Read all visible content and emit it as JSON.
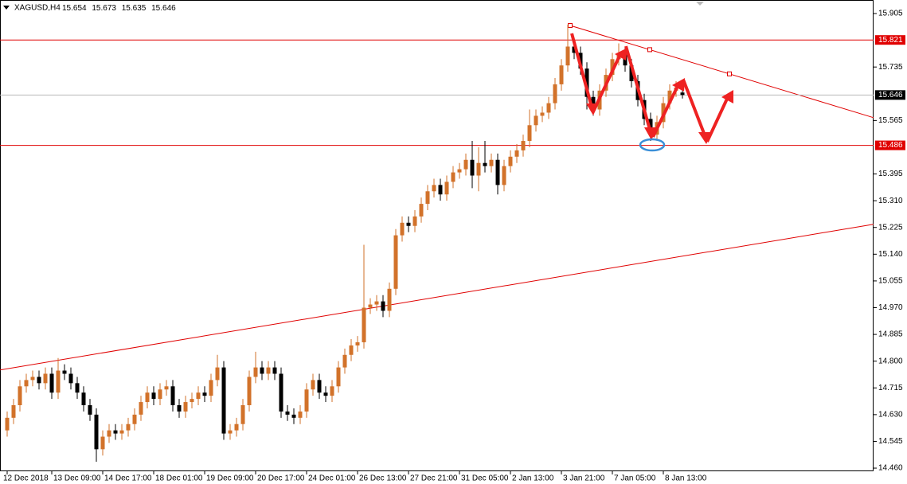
{
  "chart_data": {
    "type": "candlestick",
    "symbol": "XAGUSD,H4",
    "bull_color": "#d2722a",
    "bear_color": "#000000",
    "level_color": "#e00000",
    "ylim": [
      14.45,
      15.948
    ],
    "yticks": [
      15.905,
      15.735,
      15.565,
      15.395,
      {
        "value": 15.31,
        "label": "15.310"
      },
      15.225,
      {
        "value": 15.14,
        "label": "15.140"
      },
      15.055,
      {
        "value": 14.97,
        "label": "14.970"
      },
      14.885,
      {
        "value": 14.8,
        "label": "14.800"
      },
      14.715,
      {
        "value": 14.63,
        "label": "14.630"
      },
      14.545,
      {
        "value": 14.46,
        "label": "14.460"
      }
    ],
    "levels": [
      15.821,
      15.486
    ],
    "trendlines": [
      {
        "from": 14.772,
        "to": 15.235
      },
      {
        "from": 15.867,
        "to": 15.574
      }
    ],
    "categories": [
      "12 Dec 2018",
      null,
      null,
      null,
      null,
      null,
      null,
      "13 Dec 09:00",
      null,
      null,
      null,
      null,
      null,
      null,
      null,
      "14 Dec 17:00",
      null,
      null,
      null,
      null,
      null,
      null,
      null,
      "18 Dec 01:00",
      null,
      null,
      null,
      null,
      null,
      null,
      null,
      "19 Dec 09:00",
      null,
      null,
      null,
      null,
      null,
      null,
      null,
      "20 Dec 17:00",
      null,
      null,
      null,
      null,
      null,
      null,
      null,
      "24 Dec 01:00",
      null,
      null,
      null,
      null,
      null,
      null,
      null,
      "26 Dec 13:00",
      null,
      null,
      null,
      null,
      null,
      null,
      null,
      "27 Dec 21:00",
      null,
      null,
      null,
      null,
      null,
      null,
      null,
      "31 Dec 05:00",
      null,
      null,
      null,
      null,
      null,
      null,
      null,
      "2 Jan 13:00",
      null,
      null,
      null,
      null,
      null,
      null,
      null,
      "3 Jan 21:00",
      null,
      null,
      null,
      null,
      null,
      null,
      null,
      "7 Jan 05:00",
      null,
      null,
      null,
      null,
      null,
      null,
      null,
      "8 Jan 13:00",
      null,
      null,
      null
    ],
    "open": [
      14.58,
      14.62,
      14.66,
      14.72,
      14.74,
      14.75,
      14.73,
      14.76,
      14.7,
      14.77,
      14.76,
      14.73,
      14.7,
      14.66,
      14.63,
      14.52,
      14.56,
      14.58,
      14.57,
      14.58,
      14.6,
      14.63,
      14.67,
      14.7,
      14.68,
      14.71,
      14.72,
      14.66,
      14.64,
      14.67,
      14.68,
      14.7,
      14.69,
      14.74,
      14.78,
      14.57,
      14.58,
      14.6,
      14.66,
      14.75,
      14.78,
      14.76,
      14.78,
      14.76,
      14.64,
      14.63,
      14.62,
      14.64,
      14.71,
      14.74,
      14.7,
      14.69,
      14.72,
      14.78,
      14.82,
      14.85,
      14.86,
      14.97,
      14.98,
      14.99,
      14.96,
      15.03,
      15.2,
      15.24,
      15.23,
      15.26,
      15.3,
      15.34,
      15.36,
      15.33,
      15.37,
      15.4,
      15.41,
      15.44,
      15.39,
      15.43,
      15.42,
      15.44,
      15.36,
      15.42,
      15.45,
      15.47,
      15.5,
      15.55,
      15.58,
      15.59,
      15.62,
      15.68,
      15.74,
      15.8,
      15.78,
      15.73,
      15.64,
      15.6,
      15.66,
      15.71,
      15.76,
      15.78,
      15.74,
      15.69,
      15.63,
      15.57,
      15.52,
      15.56,
      15.62,
      15.66,
      15.654
    ],
    "high": [
      14.64,
      14.68,
      14.74,
      14.76,
      14.77,
      14.77,
      14.78,
      14.78,
      14.81,
      14.79,
      14.78,
      14.75,
      14.72,
      14.68,
      14.65,
      14.58,
      14.6,
      14.6,
      14.6,
      14.62,
      14.65,
      14.69,
      14.72,
      14.72,
      14.73,
      14.74,
      14.74,
      14.68,
      14.69,
      14.7,
      14.72,
      14.72,
      14.76,
      14.82,
      14.8,
      14.6,
      14.62,
      14.68,
      14.77,
      14.83,
      14.8,
      14.8,
      14.8,
      14.78,
      14.66,
      14.65,
      14.66,
      14.73,
      14.76,
      14.76,
      14.72,
      14.74,
      14.8,
      14.84,
      14.87,
      14.88,
      15.17,
      15.0,
      15.01,
      15.01,
      15.05,
      15.22,
      15.26,
      15.26,
      15.28,
      15.32,
      15.36,
      15.38,
      15.38,
      15.39,
      15.42,
      15.43,
      15.46,
      15.5,
      15.48,
      15.5,
      15.46,
      15.46,
      15.44,
      15.47,
      15.49,
      15.52,
      15.6,
      15.6,
      15.61,
      15.64,
      15.7,
      15.76,
      15.87,
      15.82,
      15.8,
      15.75,
      15.66,
      15.68,
      15.73,
      15.78,
      15.81,
      15.8,
      15.76,
      15.71,
      15.65,
      15.59,
      15.58,
      15.64,
      15.68,
      15.69,
      15.673
    ],
    "low": [
      14.56,
      14.6,
      14.64,
      14.7,
      14.72,
      14.71,
      14.71,
      14.68,
      14.68,
      14.74,
      14.71,
      14.68,
      14.64,
      14.61,
      14.48,
      14.5,
      14.54,
      14.55,
      14.55,
      14.56,
      14.58,
      14.61,
      14.65,
      14.66,
      14.66,
      14.69,
      14.64,
      14.62,
      14.62,
      14.65,
      14.66,
      14.67,
      14.67,
      14.72,
      14.55,
      14.55,
      14.56,
      14.58,
      14.64,
      14.73,
      14.74,
      14.74,
      14.74,
      14.62,
      14.61,
      14.6,
      14.6,
      14.62,
      14.69,
      14.68,
      14.67,
      14.67,
      14.7,
      14.76,
      14.8,
      14.83,
      14.84,
      14.95,
      14.96,
      14.94,
      14.94,
      15.01,
      15.18,
      15.21,
      15.21,
      15.24,
      15.28,
      15.32,
      15.31,
      15.31,
      15.35,
      15.38,
      15.39,
      15.35,
      15.34,
      15.4,
      15.4,
      15.33,
      15.34,
      15.4,
      15.43,
      15.45,
      15.48,
      15.53,
      15.56,
      15.57,
      15.6,
      15.66,
      15.72,
      15.76,
      15.71,
      15.6,
      15.58,
      15.58,
      15.64,
      15.69,
      15.74,
      15.72,
      15.67,
      15.61,
      15.55,
      15.5,
      15.5,
      15.54,
      15.6,
      15.64,
      15.635
    ],
    "close": [
      14.62,
      14.66,
      14.72,
      14.74,
      14.75,
      14.73,
      14.76,
      14.7,
      14.77,
      14.76,
      14.73,
      14.7,
      14.66,
      14.63,
      14.52,
      14.56,
      14.58,
      14.57,
      14.58,
      14.6,
      14.63,
      14.67,
      14.7,
      14.68,
      14.71,
      14.72,
      14.66,
      14.64,
      14.67,
      14.68,
      14.7,
      14.69,
      14.74,
      14.78,
      14.57,
      14.58,
      14.6,
      14.66,
      14.75,
      14.78,
      14.76,
      14.78,
      14.76,
      14.64,
      14.63,
      14.62,
      14.64,
      14.71,
      14.74,
      14.7,
      14.69,
      14.72,
      14.78,
      14.82,
      14.85,
      14.86,
      14.97,
      14.98,
      14.99,
      14.96,
      15.03,
      15.2,
      15.24,
      15.23,
      15.26,
      15.3,
      15.34,
      15.36,
      15.33,
      15.37,
      15.4,
      15.41,
      15.44,
      15.39,
      15.43,
      15.42,
      15.44,
      15.36,
      15.42,
      15.45,
      15.47,
      15.5,
      15.55,
      15.58,
      15.59,
      15.62,
      15.68,
      15.74,
      15.8,
      15.78,
      15.73,
      15.64,
      15.6,
      15.66,
      15.71,
      15.76,
      15.78,
      15.74,
      15.69,
      15.63,
      15.57,
      15.52,
      15.56,
      15.62,
      15.66,
      15.67,
      15.646
    ]
  }
}
